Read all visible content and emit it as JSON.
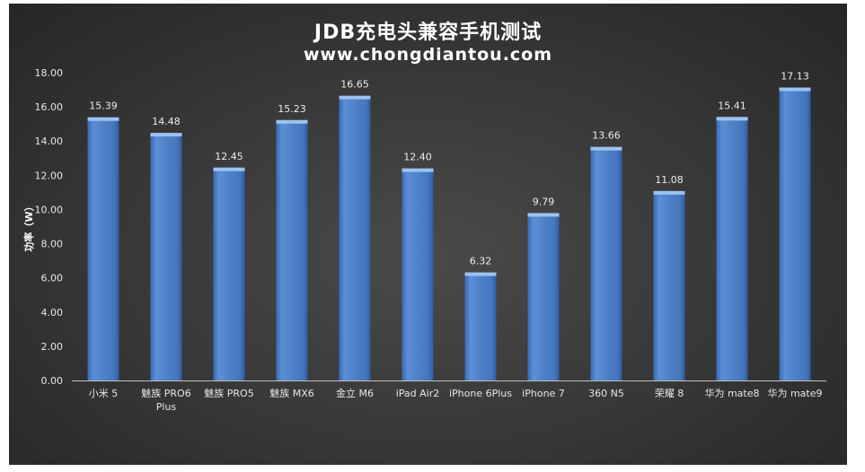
{
  "chart_data": {
    "type": "bar",
    "title": "JDB充电头兼容手机测试",
    "subtitle": "www.chongdiantou.com",
    "ylabel": "功率（W）",
    "xlabel": "",
    "ylim": [
      0,
      18
    ],
    "ytick_step": 2,
    "yticks": [
      "0.00",
      "2.00",
      "4.00",
      "6.00",
      "8.00",
      "10.00",
      "12.00",
      "14.00",
      "16.00",
      "18.00"
    ],
    "grid": false,
    "legend": "none",
    "categories": [
      "小米 5",
      "魅族 PRO6 Plus",
      "魅族 PRO5",
      "魅族 MX6",
      "金立 M6",
      "iPad Air2",
      "iPhone 6Plus",
      "iPhone 7",
      "360 N5",
      "荣耀 8",
      "华为 mate8",
      "华为 mate9"
    ],
    "series": [
      {
        "values": [
          15.39,
          14.48,
          12.45,
          15.23,
          16.65,
          12.4,
          6.32,
          9.79,
          13.66,
          11.08,
          15.41,
          17.13
        ],
        "labels": [
          "15.39",
          "14.48",
          "12.45",
          "15.23",
          "16.65",
          "12.40",
          "6.32",
          "9.79",
          "13.66",
          "11.08",
          "15.41",
          "17.13"
        ]
      }
    ],
    "colors": {
      "bar": "#4f81c8",
      "bar_dark": "#3a6bb3",
      "bar_top": "#9cc2f0",
      "background": "#333333",
      "text": "#e6e6e6"
    }
  }
}
